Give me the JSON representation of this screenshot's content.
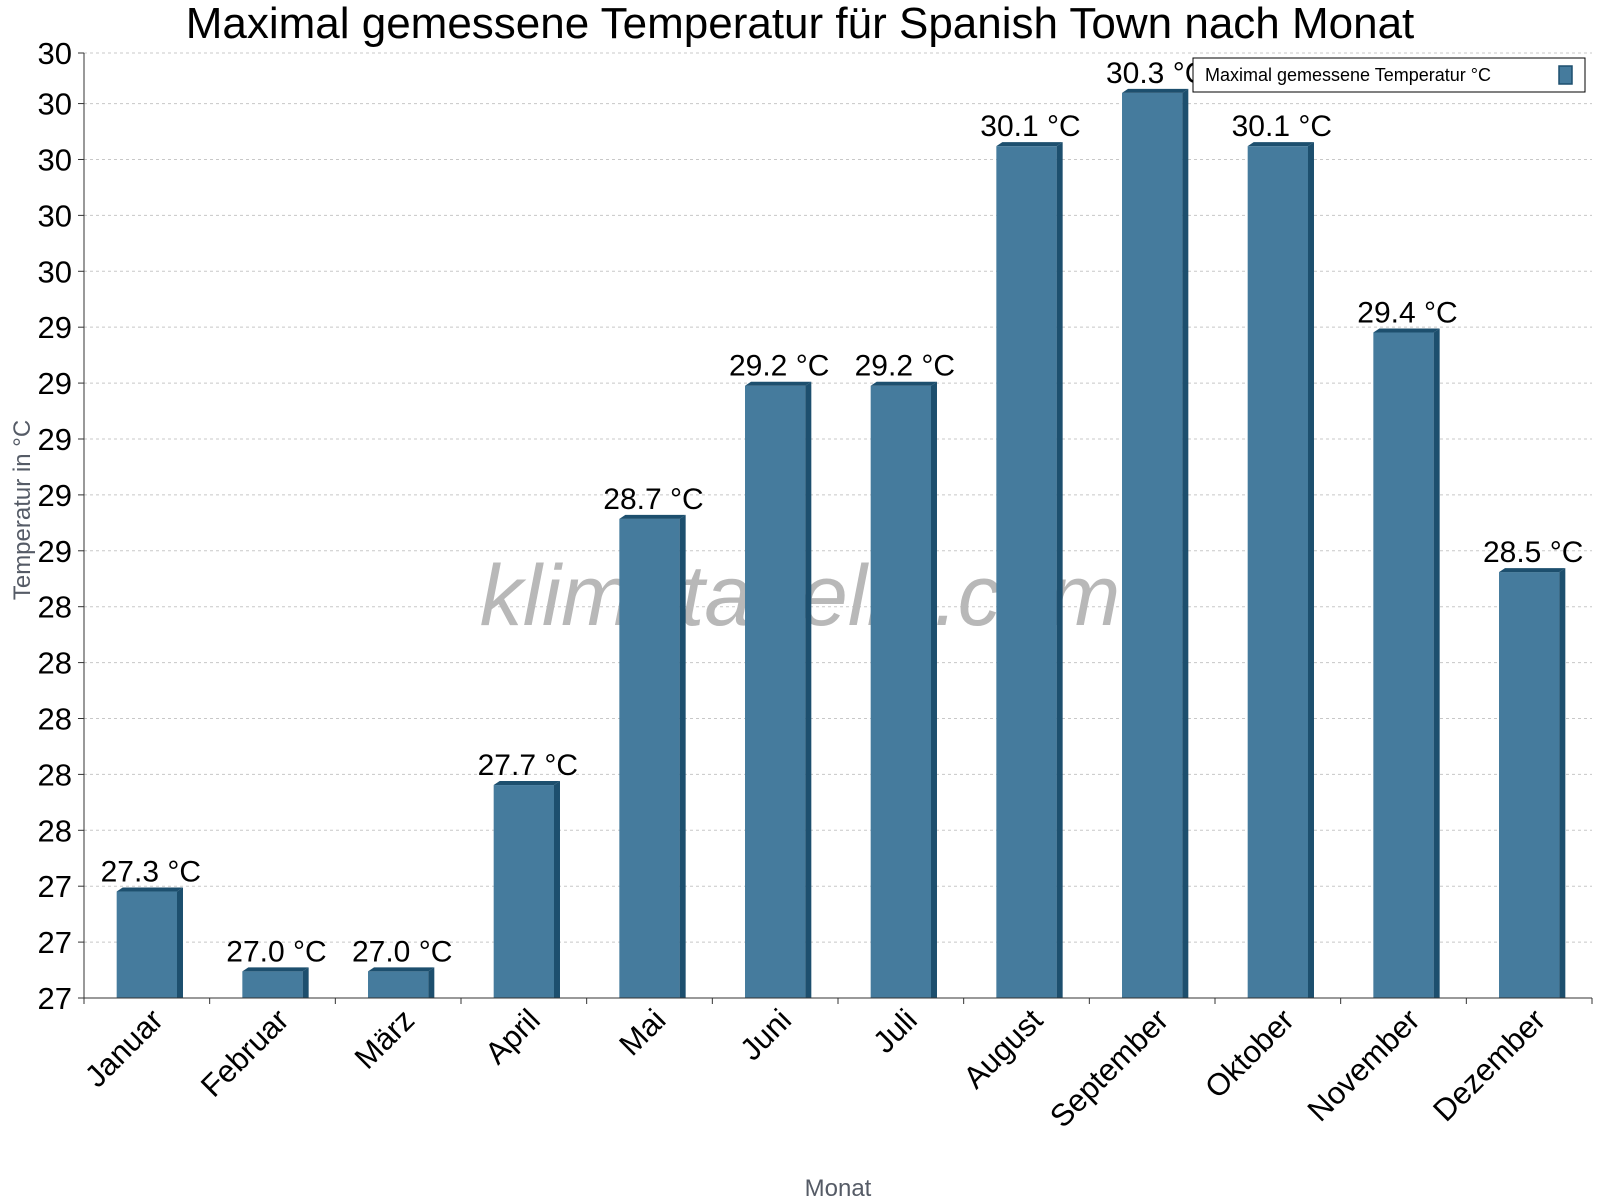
{
  "chart_data": {
    "type": "bar",
    "title": "Maximal gemessene Temperatur für Spanish Town nach Monat",
    "xlabel": "Monat",
    "ylabel": "Temperatur in °C",
    "categories": [
      "Januar",
      "Februar",
      "März",
      "April",
      "Mai",
      "Juni",
      "Juli",
      "August",
      "September",
      "Oktober",
      "November",
      "Dezember"
    ],
    "series": [
      {
        "name": "Maximal gemessene Temperatur °C",
        "values": [
          27.3,
          27.0,
          27.0,
          27.7,
          28.7,
          29.2,
          29.2,
          30.1,
          30.3,
          30.1,
          29.4,
          28.5
        ],
        "labels": [
          "27.3 °C",
          "27.0 °C",
          "27.0 °C",
          "27.7 °C",
          "28.7 °C",
          "29.2 °C",
          "29.2 °C",
          "30.1 °C",
          "30.3 °C",
          "30.1 °C",
          "29.4 °C",
          "28.5 °C"
        ],
        "color": "#457b9d",
        "edge_color": "#1d4f6e"
      }
    ],
    "ylim": [
      26.9,
      30.45
    ],
    "yticks": [
      26.9,
      27.11,
      27.32,
      27.53,
      27.74,
      27.95,
      28.16,
      28.37,
      28.58,
      28.79,
      29.0,
      29.21,
      29.42,
      29.63,
      29.84,
      30.05,
      30.26,
      30.45
    ],
    "ytick_labels": [
      "27",
      "27",
      "27",
      "28",
      "28",
      "28",
      "28",
      "28",
      "29",
      "29",
      "29",
      "29",
      "29",
      "30",
      "30",
      "30",
      "30",
      "30"
    ],
    "grid": true,
    "legend_position": "top-right",
    "watermark": "klimatabelle.com"
  }
}
